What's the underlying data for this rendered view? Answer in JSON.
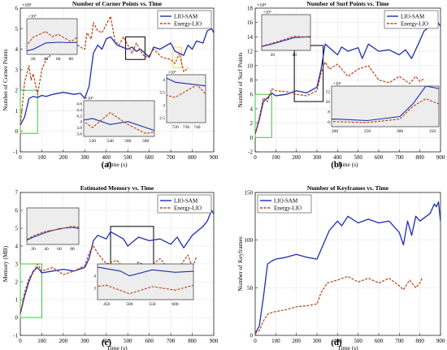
{
  "chart_data": [
    {
      "panel_label": "(a)",
      "type": "line",
      "title": "Number of Corner Points vs. Time",
      "xlabel": "Time (s)",
      "ylabel": "Number of Corner Points",
      "y_exponent_label": "×10⁴",
      "xlim": [
        0,
        900
      ],
      "ylim": [
        -1,
        6
      ],
      "xticks": [
        "0",
        "100",
        "200",
        "300",
        "400",
        "500",
        "600",
        "700",
        "800",
        "900"
      ],
      "yticks": [
        "-1",
        "0",
        "1",
        "2",
        "3",
        "4",
        "5",
        "6"
      ],
      "legend": {
        "position": "top-right",
        "entries": [
          "LIO-SAM",
          "Energy-LIO"
        ]
      },
      "series": [
        {
          "name": "LIO-SAM",
          "color": "#1f2db5",
          "style": "solid",
          "x": [
            0,
            20,
            40,
            60,
            80,
            100,
            120,
            150,
            200,
            250,
            280,
            300,
            320,
            340,
            360,
            380,
            400,
            420,
            450,
            500,
            520,
            540,
            560,
            580,
            600,
            620,
            650,
            700,
            720,
            740,
            760,
            780,
            800,
            820,
            850,
            870,
            890,
            900
          ],
          "y": [
            0.3,
            0.7,
            1.6,
            1.7,
            1.65,
            1.75,
            1.7,
            1.8,
            1.9,
            1.8,
            1.85,
            1.6,
            2.2,
            3.8,
            4.2,
            4.0,
            4.5,
            4.6,
            4.2,
            4.0,
            4.1,
            3.9,
            4.0,
            3.8,
            3.6,
            4.1,
            4.0,
            4.3,
            3.9,
            3.8,
            3.7,
            4.2,
            4.0,
            4.4,
            4.3,
            4.9,
            5.0,
            4.8
          ]
        },
        {
          "name": "Energy-LIO",
          "color": "#b8400e",
          "style": "dashed",
          "x": [
            0,
            10,
            20,
            40,
            50,
            60,
            80,
            100,
            120,
            150,
            180,
            200,
            230,
            250,
            280,
            300,
            310,
            330,
            340,
            360,
            380,
            400,
            420,
            440,
            460,
            480,
            500,
            520,
            540,
            560,
            580,
            600,
            620,
            640,
            660,
            700,
            720,
            740,
            760,
            780
          ],
          "y": [
            0.3,
            1.3,
            2.4,
            3.2,
            2.5,
            2.8,
            1.8,
            3.0,
            3.5,
            3.8,
            4.3,
            4.2,
            4.5,
            4.3,
            4.1,
            4.0,
            4.8,
            4.5,
            5.3,
            4.9,
            4.8,
            5.2,
            5.6,
            4.4,
            4.2,
            4.6,
            4.2,
            3.8,
            4.3,
            3.9,
            3.6,
            3.7,
            4.0,
            3.8,
            3.6,
            3.5,
            3.3,
            3.8,
            2.9,
            3.1
          ]
        }
      ],
      "insets": [
        {
          "xticks": [
            "20",
            "40",
            "60",
            "80"
          ],
          "exponent_label": "×10⁴"
        },
        {
          "xticks": [
            "520",
            "540",
            "560",
            "580"
          ],
          "yticks": [
            "3.6",
            "3.8",
            "4",
            "4.2",
            "4.4",
            "4.6"
          ],
          "exponent_label": "×10⁴"
        },
        {
          "xticks": [
            "720",
            "730",
            "740"
          ],
          "yticks": [
            "2.5",
            "3",
            "3.5",
            "4"
          ],
          "exponent_label": "×10⁴"
        }
      ]
    },
    {
      "panel_label": "(b)",
      "type": "line",
      "title": "Number of Surf Points vs. Time",
      "xlabel": "Time (s)",
      "ylabel": "Number of Surf Points",
      "y_exponent_label": "×10⁴",
      "xlim": [
        0,
        900
      ],
      "ylim": [
        -2,
        18
      ],
      "xticks": [
        "0",
        "100",
        "200",
        "300",
        "400",
        "500",
        "600",
        "700",
        "800",
        "900"
      ],
      "yticks": [
        "-2",
        "0",
        "2",
        "4",
        "6",
        "8",
        "10",
        "12",
        "14",
        "16",
        "18"
      ],
      "legend": {
        "position": "top-right",
        "entries": [
          "LIO-SAM",
          "Energy-LIO"
        ]
      },
      "series": [
        {
          "name": "LIO-SAM",
          "color": "#1f2db5",
          "style": "solid",
          "x": [
            0,
            20,
            40,
            60,
            80,
            100,
            150,
            200,
            250,
            300,
            320,
            340,
            360,
            400,
            420,
            450,
            500,
            520,
            550,
            600,
            650,
            700,
            730,
            760,
            800,
            820,
            850,
            880,
            900
          ],
          "y": [
            0.5,
            2.5,
            5.0,
            5.5,
            6.2,
            5.8,
            6.0,
            6.5,
            6.2,
            7.0,
            9.5,
            13.0,
            12.5,
            11.5,
            12.6,
            12.0,
            12.5,
            11.0,
            13.0,
            12.0,
            12.2,
            11.5,
            12.2,
            11.0,
            13.5,
            14.8,
            15.5,
            16.2,
            15.5
          ]
        },
        {
          "name": "Energy-LIO",
          "color": "#b8400e",
          "style": "dashed",
          "x": [
            0,
            20,
            40,
            60,
            80,
            100,
            150,
            200,
            250,
            300,
            320,
            340,
            360,
            400,
            450,
            500,
            550,
            600,
            650,
            700,
            750,
            780,
            800,
            820
          ],
          "y": [
            0.5,
            2.8,
            5.5,
            5.0,
            6.8,
            6.5,
            6.4,
            6.0,
            5.8,
            6.5,
            9.0,
            10.5,
            9.5,
            10.2,
            8.5,
            9.5,
            10.0,
            8.0,
            7.6,
            8.5,
            7.5,
            8.5,
            7.8,
            8.2
          ]
        }
      ],
      "insets": [
        {
          "xticks": [
            "20",
            "40"
          ],
          "yticks": [],
          "exponent_label": "×10⁴"
        },
        {
          "xticks": [
            "200",
            "250",
            "300",
            "350"
          ],
          "yticks": [
            "6",
            "8",
            "10",
            "12"
          ],
          "exponent_label": "×10⁴"
        }
      ]
    },
    {
      "panel_label": "(c)",
      "type": "line",
      "title": "Estimated Memory vs. Time",
      "xlabel": "Time (s)",
      "ylabel": "Memory (MB)",
      "xlim": [
        0,
        900
      ],
      "ylim": [
        -1,
        7
      ],
      "xticks": [
        "0",
        "100",
        "200",
        "300",
        "400",
        "500",
        "600",
        "700",
        "800",
        "900"
      ],
      "yticks": [
        "-1",
        "0",
        "1",
        "2",
        "3",
        "4",
        "5",
        "6",
        "7"
      ],
      "legend": {
        "position": "top-right",
        "entries": [
          "LIO-SAM",
          "Energy-LIO"
        ]
      },
      "series": [
        {
          "name": "LIO-SAM",
          "color": "#1f2db5",
          "style": "solid",
          "x": [
            0,
            20,
            40,
            60,
            80,
            100,
            150,
            200,
            250,
            300,
            320,
            340,
            360,
            400,
            420,
            450,
            480,
            500,
            550,
            600,
            650,
            700,
            730,
            760,
            800,
            850,
            870,
            890,
            900
          ],
          "y": [
            0.2,
            1.2,
            2.0,
            2.6,
            2.8,
            2.5,
            2.6,
            2.7,
            2.6,
            2.8,
            3.3,
            4.3,
            4.6,
            4.4,
            4.8,
            4.6,
            4.4,
            4.0,
            4.5,
            4.3,
            4.4,
            4.1,
            4.5,
            3.9,
            4.6,
            5.1,
            5.4,
            6.0,
            5.8
          ]
        },
        {
          "name": "Energy-LIO",
          "color": "#b8400e",
          "style": "dashed",
          "x": [
            0,
            20,
            40,
            60,
            80,
            100,
            150,
            200,
            250,
            300,
            320,
            340,
            360,
            400,
            450,
            500,
            550,
            600,
            650,
            700,
            750,
            780,
            800,
            820
          ],
          "y": [
            0.2,
            1.4,
            2.2,
            2.5,
            3.0,
            2.6,
            2.8,
            2.4,
            2.6,
            2.9,
            3.6,
            4.0,
            3.6,
            3.0,
            3.2,
            2.5,
            3.1,
            2.8,
            3.3,
            2.6,
            3.0,
            3.5,
            2.8,
            3.4
          ]
        }
      ],
      "insets": [
        {
          "xticks": [
            "20",
            "40",
            "60",
            "80"
          ],
          "yticks": []
        },
        {
          "xticks": [
            "450",
            "500",
            "550",
            "600"
          ],
          "yticks": [
            "3",
            "4"
          ]
        }
      ]
    },
    {
      "panel_label": "(d)",
      "type": "line",
      "title": "Number of Keyframes vs. Time",
      "xlabel": "Time (s)",
      "ylabel": "Number of Keyframes",
      "xlim": [
        0,
        900
      ],
      "ylim": [
        0,
        150
      ],
      "xticks": [
        "0",
        "100",
        "200",
        "300",
        "400",
        "500",
        "600",
        "700",
        "800",
        "900"
      ],
      "yticks": [
        "0",
        "50",
        "100",
        "150"
      ],
      "legend": {
        "position": "top-left",
        "entries": [
          "LIO-SAM",
          "Energy-LIO"
        ]
      },
      "series": [
        {
          "name": "LIO-SAM",
          "color": "#1f2db5",
          "style": "solid",
          "x": [
            0,
            20,
            40,
            60,
            80,
            100,
            150,
            200,
            250,
            300,
            330,
            360,
            400,
            420,
            450,
            500,
            550,
            600,
            650,
            700,
            720,
            740,
            760,
            780,
            800,
            850,
            870,
            880,
            890,
            900
          ],
          "y": [
            2,
            10,
            40,
            75,
            78,
            80,
            82,
            85,
            82,
            80,
            95,
            110,
            120,
            115,
            125,
            118,
            122,
            118,
            120,
            108,
            95,
            120,
            105,
            125,
            120,
            128,
            138,
            135,
            140,
            120
          ]
        },
        {
          "name": "Energy-LIO",
          "color": "#b8400e",
          "style": "dashed",
          "x": [
            0,
            20,
            40,
            60,
            80,
            100,
            150,
            200,
            250,
            300,
            320,
            350,
            400,
            450,
            500,
            550,
            600,
            650,
            700,
            720,
            750,
            780,
            800,
            810
          ],
          "y": [
            2,
            5,
            15,
            22,
            24,
            25,
            27,
            30,
            31,
            33,
            45,
            55,
            58,
            62,
            56,
            60,
            55,
            60,
            52,
            48,
            58,
            50,
            55,
            60
          ]
        }
      ]
    }
  ]
}
